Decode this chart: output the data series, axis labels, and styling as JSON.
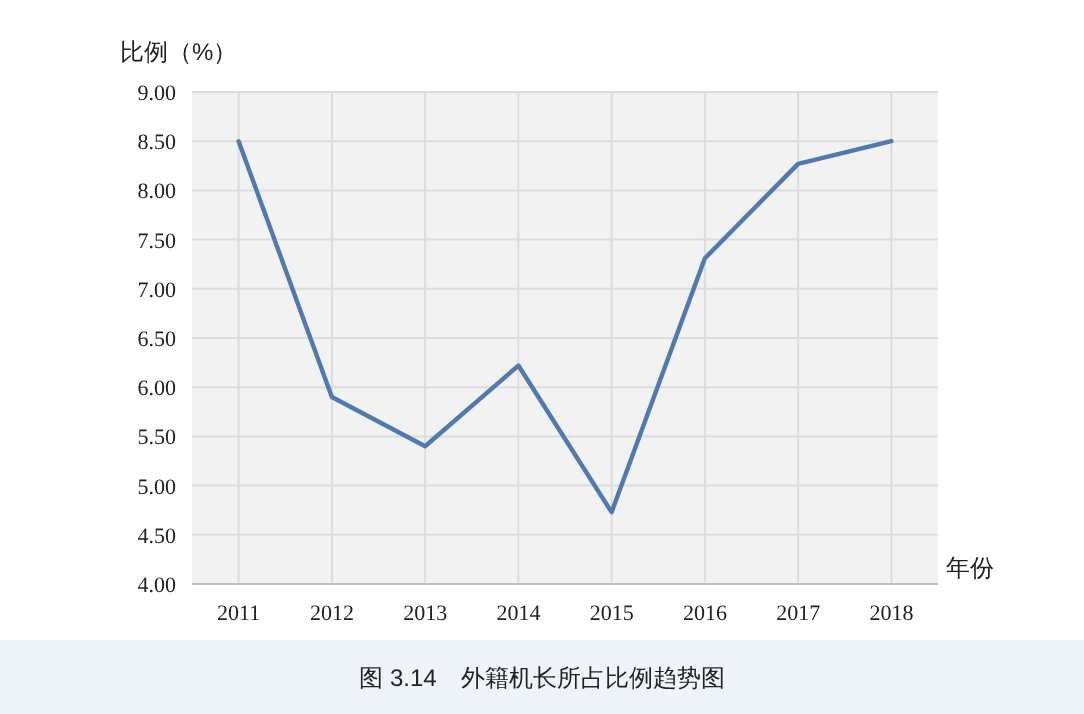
{
  "chart_data": {
    "type": "line",
    "title": "图 3.14　外籍机长所占比例趋势图",
    "ylabel": "比例（%）",
    "xlabel": "年份",
    "categories": [
      "2011",
      "2012",
      "2013",
      "2014",
      "2015",
      "2016",
      "2017",
      "2018"
    ],
    "series": [
      {
        "color": "#4f79b3",
        "values": [
          8.5,
          5.9,
          5.4,
          6.22,
          4.73,
          7.31,
          8.27,
          8.5
        ]
      }
    ],
    "ylim": [
      4,
      9
    ],
    "yticks": [
      {
        "value": 4,
        "label": "4.00"
      },
      {
        "value": 4.5,
        "label": "4.50"
      },
      {
        "value": 5,
        "label": "5.00"
      },
      {
        "value": 5.5,
        "label": "5.50"
      },
      {
        "value": 6,
        "label": "6.00"
      },
      {
        "value": 6.5,
        "label": "6.50"
      },
      {
        "value": 7,
        "label": "7.00"
      },
      {
        "value": 7.5,
        "label": "7.50"
      },
      {
        "value": 8,
        "label": "8.00"
      },
      {
        "value": 8.5,
        "label": "8.50"
      },
      {
        "value": 9,
        "label": "9.00"
      }
    ],
    "grid": true,
    "marker": "none",
    "line_style": "solid"
  }
}
